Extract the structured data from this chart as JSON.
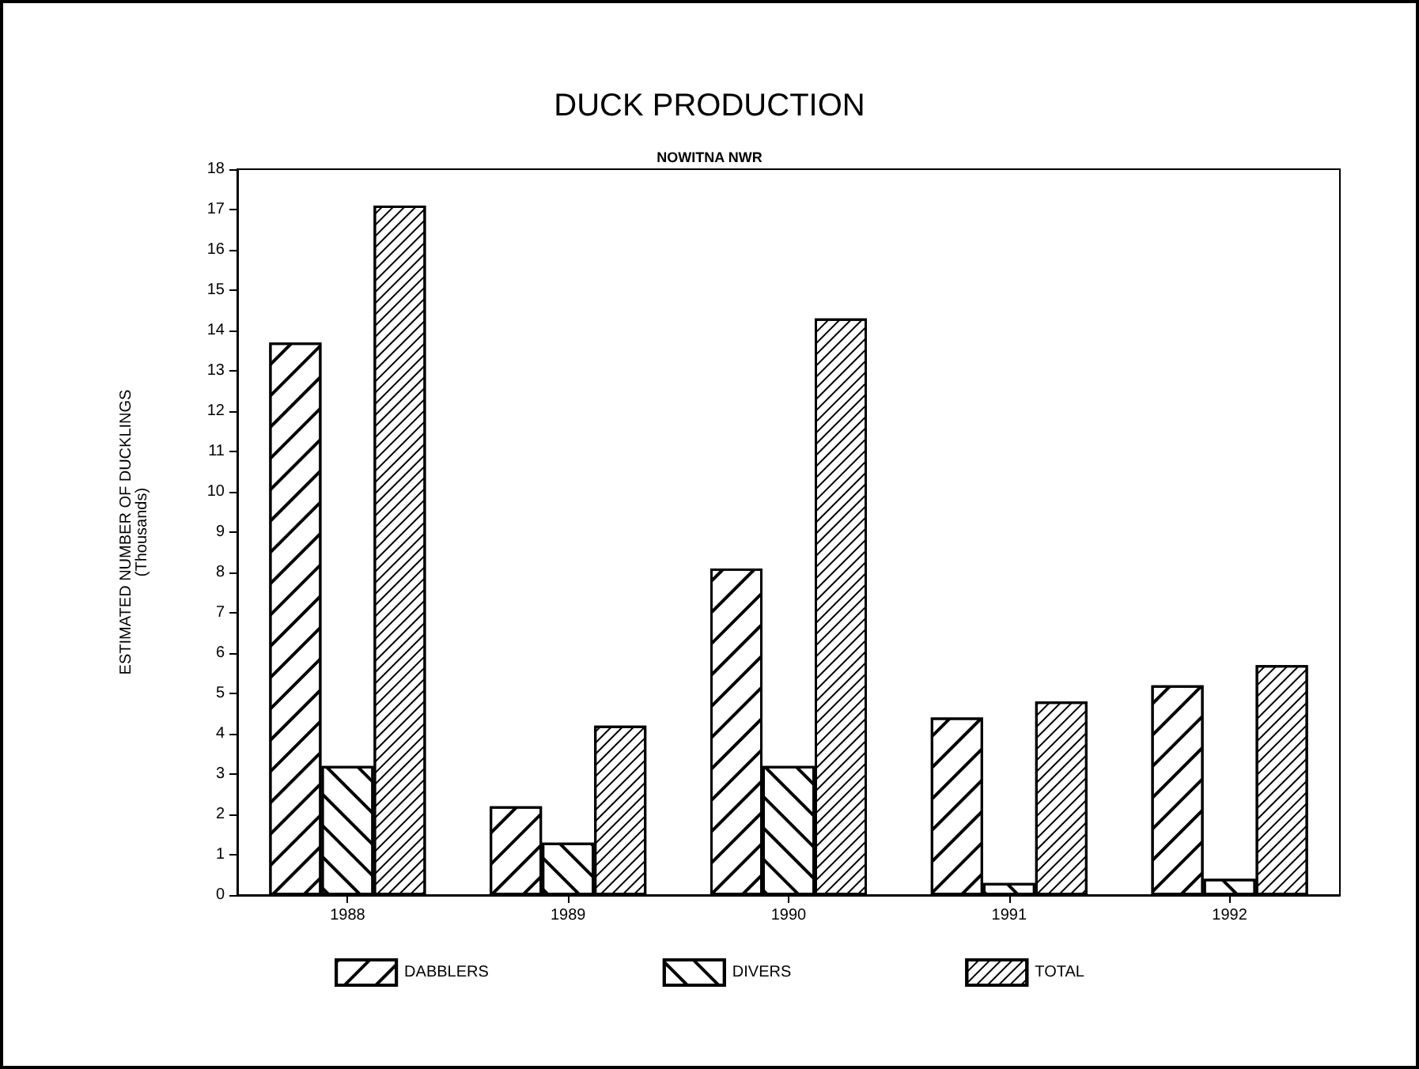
{
  "chart_data": {
    "type": "bar",
    "title": "DUCK PRODUCTION",
    "subtitle": "NOWITNA NWR",
    "ylabel": "ESTIMATED NUMBER OF DUCKLINGS\n(Thousands)",
    "categories": [
      "1988",
      "1989",
      "1990",
      "1991",
      "1992"
    ],
    "series": [
      {
        "name": "DABBLERS",
        "color": "#000000",
        "values": [
          13.7,
          2.2,
          8.1,
          4.4,
          5.2
        ]
      },
      {
        "name": "DIVERS",
        "color": "#000000",
        "values": [
          3.2,
          1.3,
          3.2,
          0.3,
          0.4
        ]
      },
      {
        "name": "TOTAL",
        "color": "#000000",
        "values": [
          17.1,
          4.2,
          14.3,
          4.8,
          5.7
        ]
      }
    ],
    "ylim": [
      0,
      18
    ],
    "yticks": [
      0,
      1,
      2,
      3,
      4,
      5,
      6,
      7,
      8,
      9,
      10,
      11,
      12,
      13,
      14,
      15,
      16,
      17,
      18
    ],
    "grid": false,
    "legend": "bottom"
  }
}
